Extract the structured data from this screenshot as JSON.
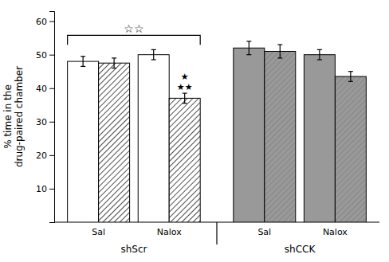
{
  "chart_data": {
    "type": "bar",
    "categories": [
      "Sal",
      "Nalox",
      "Sal",
      "Nalox"
    ],
    "group_labels": [
      "shScr",
      "shCCK"
    ],
    "y_label": "% time in the\ndrug-paired chamber",
    "series": [
      {
        "values": [
          48.0,
          50.0,
          52.0,
          50.0
        ],
        "errors": [
          1.5,
          1.5,
          2.0,
          1.5
        ],
        "colors": [
          "white",
          "white",
          "#999999",
          "#999999"
        ]
      },
      {
        "values": [
          47.5,
          37.0,
          51.0,
          43.5
        ],
        "errors": [
          1.5,
          1.5,
          2.0,
          1.5
        ],
        "colors": [
          "white",
          "white",
          "#999999",
          "#999999"
        ]
      }
    ],
    "ylim": [
      0,
      63
    ],
    "yticks": [
      10,
      20,
      30,
      40,
      50,
      60
    ],
    "grid": false,
    "annotations": [
      {
        "text": "☆☆",
        "from": {
          "series": 0,
          "category": 0
        },
        "to": {
          "series": 1,
          "category": 1
        }
      },
      {
        "lines": [
          "★",
          "★★"
        ],
        "at": {
          "series": 1,
          "category": 1
        }
      }
    ]
  }
}
